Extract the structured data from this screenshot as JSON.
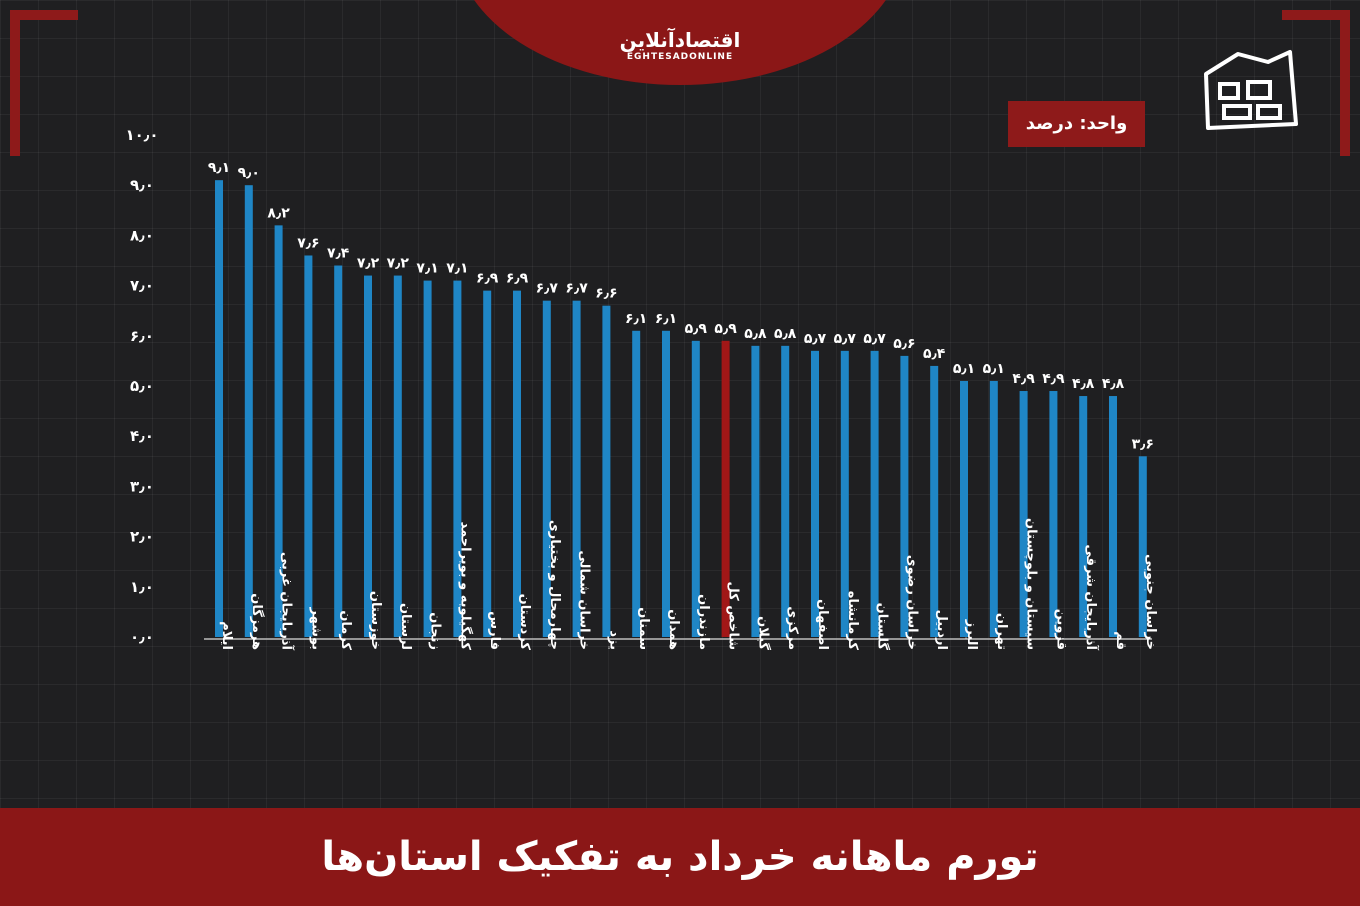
{
  "brand": {
    "name": "اقتصادآنلاین",
    "latin": "EGHTESADONLINE"
  },
  "unit_label": "واحد: درصد",
  "footer_title": "تورم ماهانه خرداد به تفکیک استان‌ها",
  "colors": {
    "bar": "#1f86c6",
    "highlight": "#a11717",
    "accent": "#8e1a1a",
    "text": "#ffffff"
  },
  "chart_data": {
    "type": "bar",
    "ylim": [
      0,
      10
    ],
    "yticks": [
      "۰٫۰",
      "۱٫۰",
      "۲٫۰",
      "۳٫۰",
      "۴٫۰",
      "۵٫۰",
      "۶٫۰",
      "۷٫۰",
      "۸٫۰",
      "۹٫۰",
      "۱۰٫۰"
    ],
    "highlight_category": "شاخص کل",
    "categories": [
      "ایلام",
      "هرمزگان",
      "آذربایجان غربی",
      "بوشهر",
      "کرمان",
      "خوزستان",
      "لرستان",
      "زنجان",
      "کهگیلویه و بویراحمد",
      "فارس",
      "کردستان",
      "چهارمحال و بختیاری",
      "خراسان شمالی",
      "یزد",
      "سمنان",
      "همدان",
      "مازندران",
      "شاخص کل",
      "گیلان",
      "مرکزی",
      "اصفهان",
      "کرمانشاه",
      "گلستان",
      "خراسان رضوی",
      "اردبیل",
      "البرز",
      "تهران",
      "سیستان و بلوچستان",
      "قزوین",
      "آذربایجان شرقی",
      "قم",
      "خراسان جنوبی"
    ],
    "values": [
      9.1,
      9.0,
      8.2,
      7.6,
      7.4,
      7.2,
      7.2,
      7.1,
      7.1,
      6.9,
      6.9,
      6.7,
      6.7,
      6.6,
      6.1,
      6.1,
      5.9,
      5.9,
      5.8,
      5.8,
      5.7,
      5.7,
      5.7,
      5.6,
      5.4,
      5.1,
      5.1,
      4.9,
      4.9,
      4.8,
      4.8,
      3.6
    ],
    "value_labels": [
      "۹٫۱",
      "۹٫۰",
      "۸٫۲",
      "۷٫۶",
      "۷٫۴",
      "۷٫۲",
      "۷٫۲",
      "۷٫۱",
      "۷٫۱",
      "۶٫۹",
      "۶٫۹",
      "۶٫۷",
      "۶٫۷",
      "۶٫۶",
      "۶٫۱",
      "۶٫۱",
      "۵٫۹",
      "۵٫۹",
      "۵٫۸",
      "۵٫۸",
      "۵٫۷",
      "۵٫۷",
      "۵٫۷",
      "۵٫۶",
      "۵٫۴",
      "۵٫۱",
      "۵٫۱",
      "۴٫۹",
      "۴٫۹",
      "۴٫۸",
      "۴٫۸",
      "۳٫۶"
    ]
  }
}
